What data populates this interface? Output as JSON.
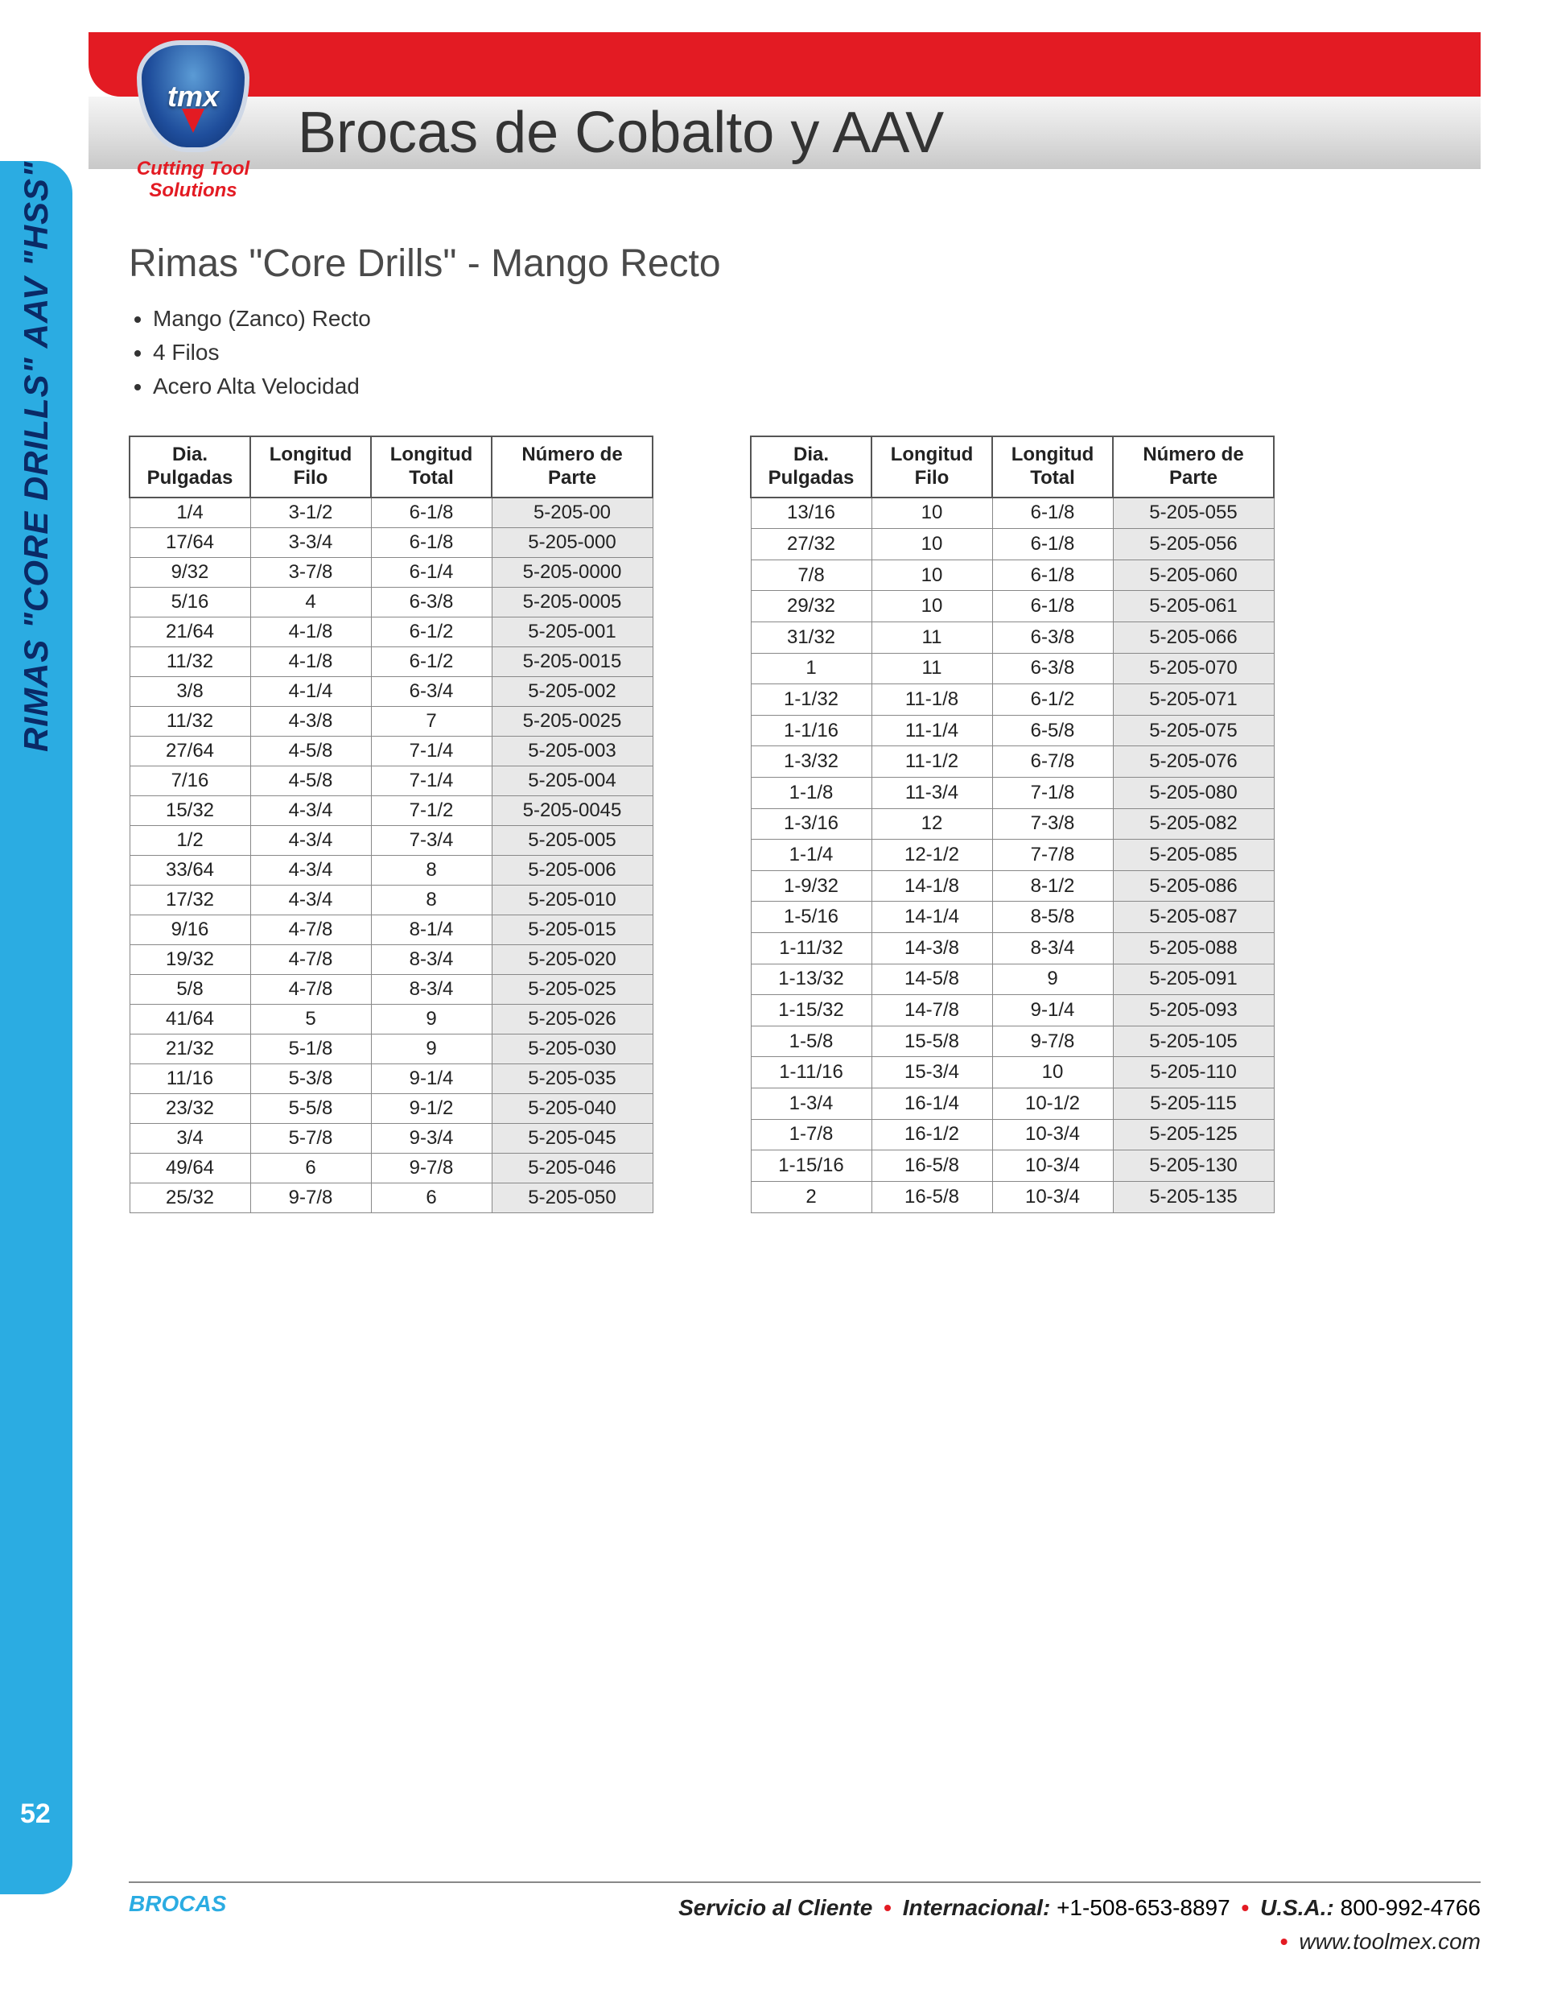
{
  "side_tab": {
    "text": "RIMAS \"CORE DRILLS\" AAV \"HSS\""
  },
  "page_number": "52",
  "logo": {
    "brand": "tmx",
    "sub1": "Cutting Tool",
    "sub2": "Solutions"
  },
  "header": {
    "title": "Brocas de Cobalto y AAV"
  },
  "section": {
    "title": "Rimas \"Core Drills\" - Mango Recto",
    "bullets": [
      "Mango (Zanco) Recto",
      "4 Filos",
      "Acero Alta Velocidad"
    ]
  },
  "table": {
    "columns": [
      {
        "line1": "Dia.",
        "line2": "Pulgadas"
      },
      {
        "line1": "Longitud",
        "line2": "Filo"
      },
      {
        "line1": "Longitud",
        "line2": "Total"
      },
      {
        "line1": "Número de",
        "line2": "Parte"
      }
    ],
    "left_rows": [
      [
        "1/4",
        "3-1/2",
        "6-1/8",
        "5-205-00"
      ],
      [
        "17/64",
        "3-3/4",
        "6-1/8",
        "5-205-000"
      ],
      [
        "9/32",
        "3-7/8",
        "6-1/4",
        "5-205-0000"
      ],
      [
        "5/16",
        "4",
        "6-3/8",
        "5-205-0005"
      ],
      [
        "21/64",
        "4-1/8",
        "6-1/2",
        "5-205-001"
      ],
      [
        "11/32",
        "4-1/8",
        "6-1/2",
        "5-205-0015"
      ],
      [
        "3/8",
        "4-1/4",
        "6-3/4",
        "5-205-002"
      ],
      [
        "11/32",
        "4-3/8",
        "7",
        "5-205-0025"
      ],
      [
        "27/64",
        "4-5/8",
        "7-1/4",
        "5-205-003"
      ],
      [
        "7/16",
        "4-5/8",
        "7-1/4",
        "5-205-004"
      ],
      [
        "15/32",
        "4-3/4",
        "7-1/2",
        "5-205-0045"
      ],
      [
        "1/2",
        "4-3/4",
        "7-3/4",
        "5-205-005"
      ],
      [
        "33/64",
        "4-3/4",
        "8",
        "5-205-006"
      ],
      [
        "17/32",
        "4-3/4",
        "8",
        "5-205-010"
      ],
      [
        "9/16",
        "4-7/8",
        "8-1/4",
        "5-205-015"
      ],
      [
        "19/32",
        "4-7/8",
        "8-3/4",
        "5-205-020"
      ],
      [
        "5/8",
        "4-7/8",
        "8-3/4",
        "5-205-025"
      ],
      [
        "41/64",
        "5",
        "9",
        "5-205-026"
      ],
      [
        "21/32",
        "5-1/8",
        "9",
        "5-205-030"
      ],
      [
        "11/16",
        "5-3/8",
        "9-1/4",
        "5-205-035"
      ],
      [
        "23/32",
        "5-5/8",
        "9-1/2",
        "5-205-040"
      ],
      [
        "3/4",
        "5-7/8",
        "9-3/4",
        "5-205-045"
      ],
      [
        "49/64",
        "6",
        "9-7/8",
        "5-205-046"
      ],
      [
        "25/32",
        "9-7/8",
        "6",
        "5-205-050"
      ]
    ],
    "right_rows": [
      [
        "13/16",
        "10",
        "6-1/8",
        "5-205-055"
      ],
      [
        "27/32",
        "10",
        "6-1/8",
        "5-205-056"
      ],
      [
        "7/8",
        "10",
        "6-1/8",
        "5-205-060"
      ],
      [
        "29/32",
        "10",
        "6-1/8",
        "5-205-061"
      ],
      [
        "31/32",
        "11",
        "6-3/8",
        "5-205-066"
      ],
      [
        "1",
        "11",
        "6-3/8",
        "5-205-070"
      ],
      [
        "1-1/32",
        "11-1/8",
        "6-1/2",
        "5-205-071"
      ],
      [
        "1-1/16",
        "11-1/4",
        "6-5/8",
        "5-205-075"
      ],
      [
        "1-3/32",
        "11-1/2",
        "6-7/8",
        "5-205-076"
      ],
      [
        "1-1/8",
        "11-3/4",
        "7-1/8",
        "5-205-080"
      ],
      [
        "1-3/16",
        "12",
        "7-3/8",
        "5-205-082"
      ],
      [
        "1-1/4",
        "12-1/2",
        "7-7/8",
        "5-205-085"
      ],
      [
        "1-9/32",
        "14-1/8",
        "8-1/2",
        "5-205-086"
      ],
      [
        "1-5/16",
        "14-1/4",
        "8-5/8",
        "5-205-087"
      ],
      [
        "1-11/32",
        "14-3/8",
        "8-3/4",
        "5-205-088"
      ],
      [
        "1-13/32",
        "14-5/8",
        "9",
        "5-205-091"
      ],
      [
        "1-15/32",
        "14-7/8",
        "9-1/4",
        "5-205-093"
      ],
      [
        "1-5/8",
        "15-5/8",
        "9-7/8",
        "5-205-105"
      ],
      [
        "1-11/16",
        "15-3/4",
        "10",
        "5-205-110"
      ],
      [
        "1-3/4",
        "16-1/4",
        "10-1/2",
        "5-205-115"
      ],
      [
        "1-7/8",
        "16-1/2",
        "10-3/4",
        "5-205-125"
      ],
      [
        "1-15/16",
        "16-5/8",
        "10-3/4",
        "5-205-130"
      ],
      [
        "2",
        "16-5/8",
        "10-3/4",
        "5-205-135"
      ]
    ],
    "header_bg": "#ffffff",
    "part_bg": "#e8e8e8",
    "border_color": "#888888"
  },
  "footer": {
    "left": "BROCAS",
    "service": "Servicio al Cliente",
    "intl_label": "Internacional:",
    "intl_phone": "+1-508-653-8897",
    "usa_label": "U.S.A.:",
    "usa_phone": "800-992-4766",
    "url": "www.toolmex.com"
  }
}
